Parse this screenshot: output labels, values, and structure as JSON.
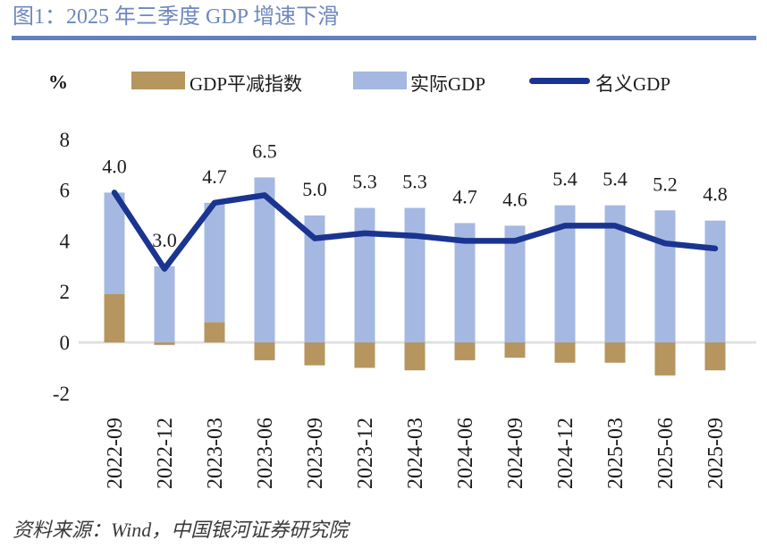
{
  "figure": {
    "title": "图1：2025 年三季度 GDP 增速下滑",
    "source": "资料来源：Wind，中国银河证券研究院"
  },
  "legend": {
    "unit_label": "%"
  },
  "colors": {
    "title_text": "#6e88be",
    "title_rule": "#637fbc",
    "deflator_bar": "#b6955f",
    "real_gdp_bar": "#a5b8e1",
    "nominal_gdp_line": "#1a3490",
    "zero_line": "#e0e0e0",
    "axis_text": "#1c1c1c"
  },
  "chart_data": {
    "type": "bar",
    "subtype": "stacked-bars-with-line",
    "title": "2025 年三季度 GDP 增速下滑",
    "xlabel": "",
    "ylabel": "%",
    "categories": [
      "2022-09",
      "2022-12",
      "2023-03",
      "2023-06",
      "2023-09",
      "2023-12",
      "2024-03",
      "2024-06",
      "2024-09",
      "2024-12",
      "2025-03",
      "2025-06",
      "2025-09"
    ],
    "series": [
      {
        "name": "GDP平减指数",
        "key": "gdp-deflator",
        "type": "bar",
        "stacked": true,
        "color": "#b6955f",
        "values": [
          1.9,
          -0.1,
          0.8,
          -0.7,
          -0.9,
          -1.0,
          -1.1,
          -0.7,
          -0.6,
          -0.8,
          -0.8,
          -1.3,
          -1.1
        ]
      },
      {
        "name": "实际GDP",
        "key": "real-gdp",
        "type": "bar",
        "stacked": true,
        "color": "#a5b8e1",
        "values": [
          4.0,
          3.0,
          4.7,
          6.5,
          5.0,
          5.3,
          5.3,
          4.7,
          4.6,
          5.4,
          5.4,
          5.2,
          4.8
        ]
      },
      {
        "name": "名义GDP",
        "key": "nominal-gdp",
        "type": "line",
        "color": "#1a3490",
        "values": [
          5.9,
          2.9,
          5.5,
          5.8,
          4.1,
          4.3,
          4.2,
          4.0,
          4.0,
          4.6,
          4.6,
          3.9,
          3.7
        ]
      }
    ],
    "bar_labels": [
      "4.0",
      "3.0",
      "4.7",
      "6.5",
      "5.0",
      "5.3",
      "5.3",
      "4.7",
      "4.6",
      "5.4",
      "5.4",
      "5.2",
      "4.8"
    ],
    "yticks": [
      8,
      6,
      4,
      2,
      0,
      -2
    ],
    "ylim": [
      -2.8,
      8.8
    ],
    "grid": "zero-line-only",
    "legend_position": "top"
  }
}
